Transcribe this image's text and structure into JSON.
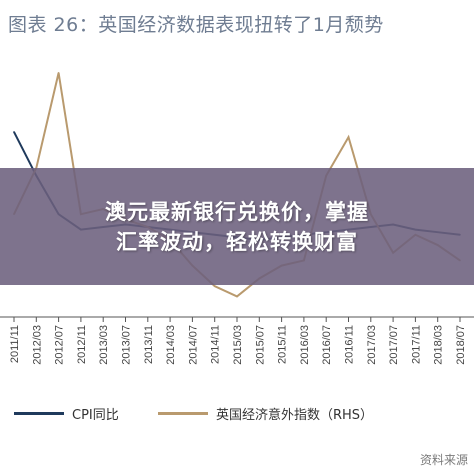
{
  "title": "图表 26：英国经济数据表现扭转了1月颓势",
  "banner": {
    "line1": "澳元最新银行兑换价，掌握",
    "line2": "汇率波动，轻松转换财富"
  },
  "watermark": "资料来源",
  "colors": {
    "cpi": "#1f3a5c",
    "rhs": "#b99a6e",
    "banner": "#6c607d"
  },
  "chart_data": {
    "type": "line",
    "title": "图表 26：英国经济数据表现扭转了1月颓势",
    "x": [
      "2011/11",
      "2012/03",
      "2012/07",
      "2012/11",
      "2013/03",
      "2013/07",
      "2013/11",
      "2014/03",
      "2014/07",
      "2014/11",
      "2015/03",
      "2015/07",
      "2015/11",
      "2016/03",
      "2016/07",
      "2016/11",
      "2017/03",
      "2017/07",
      "2017/11",
      "2018/03",
      "2018/07"
    ],
    "ylim": [
      0,
      100
    ],
    "series": [
      {
        "name": "CPI同比",
        "color": "#1f3a5c",
        "values": [
          72,
          55,
          40,
          34,
          35,
          36,
          35,
          34,
          33,
          32,
          31,
          30,
          31,
          32,
          33,
          34,
          35,
          36,
          34,
          33,
          32
        ]
      },
      {
        "name": "英国经济意外指数（RHS）",
        "color": "#b99a6e",
        "values": [
          40,
          58,
          95,
          40,
          42,
          38,
          35,
          30,
          20,
          12,
          8,
          15,
          20,
          22,
          55,
          70,
          40,
          25,
          32,
          28,
          22
        ]
      }
    ]
  }
}
